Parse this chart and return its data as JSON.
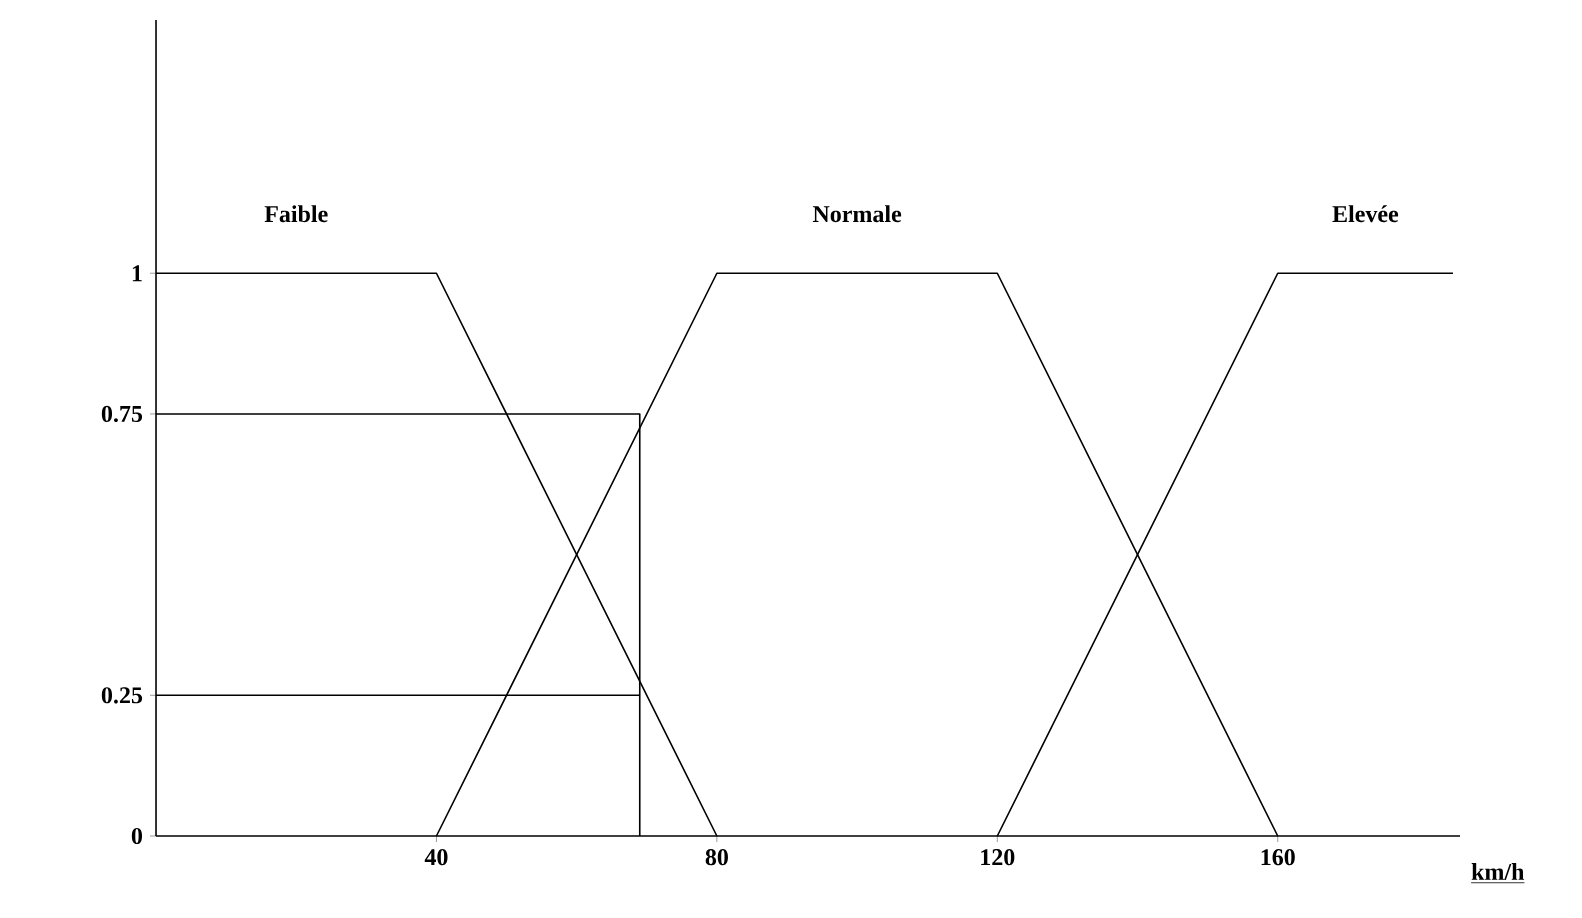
{
  "chart_data": {
    "type": "line",
    "xlabel": "km/h",
    "xlim": [
      0,
      186
    ],
    "ylim": [
      0,
      1.45
    ],
    "xticks": [
      40,
      80,
      120,
      160
    ],
    "yticks": [
      0,
      0.25,
      0.75,
      1
    ],
    "grid": false,
    "marker": "none",
    "line_style": "solid",
    "series": [
      {
        "name": "Faible",
        "color": "#000000",
        "x": [
          0,
          40,
          80
        ],
        "values": [
          1,
          1,
          0
        ]
      },
      {
        "name": "Normale",
        "color": "#000000",
        "x": [
          40,
          80,
          120,
          160
        ],
        "values": [
          0,
          1,
          1,
          0
        ]
      },
      {
        "name": "Elevée",
        "color": "#000000",
        "x": [
          120,
          160,
          185
        ],
        "values": [
          0,
          1,
          1
        ]
      },
      {
        "color": "#000000",
        "x": [
          0,
          69,
          69
        ],
        "values": [
          0.75,
          0.75,
          0
        ]
      },
      {
        "color": "#000000",
        "x": [
          0,
          69
        ],
        "values": [
          0.25,
          0.25
        ]
      }
    ]
  }
}
